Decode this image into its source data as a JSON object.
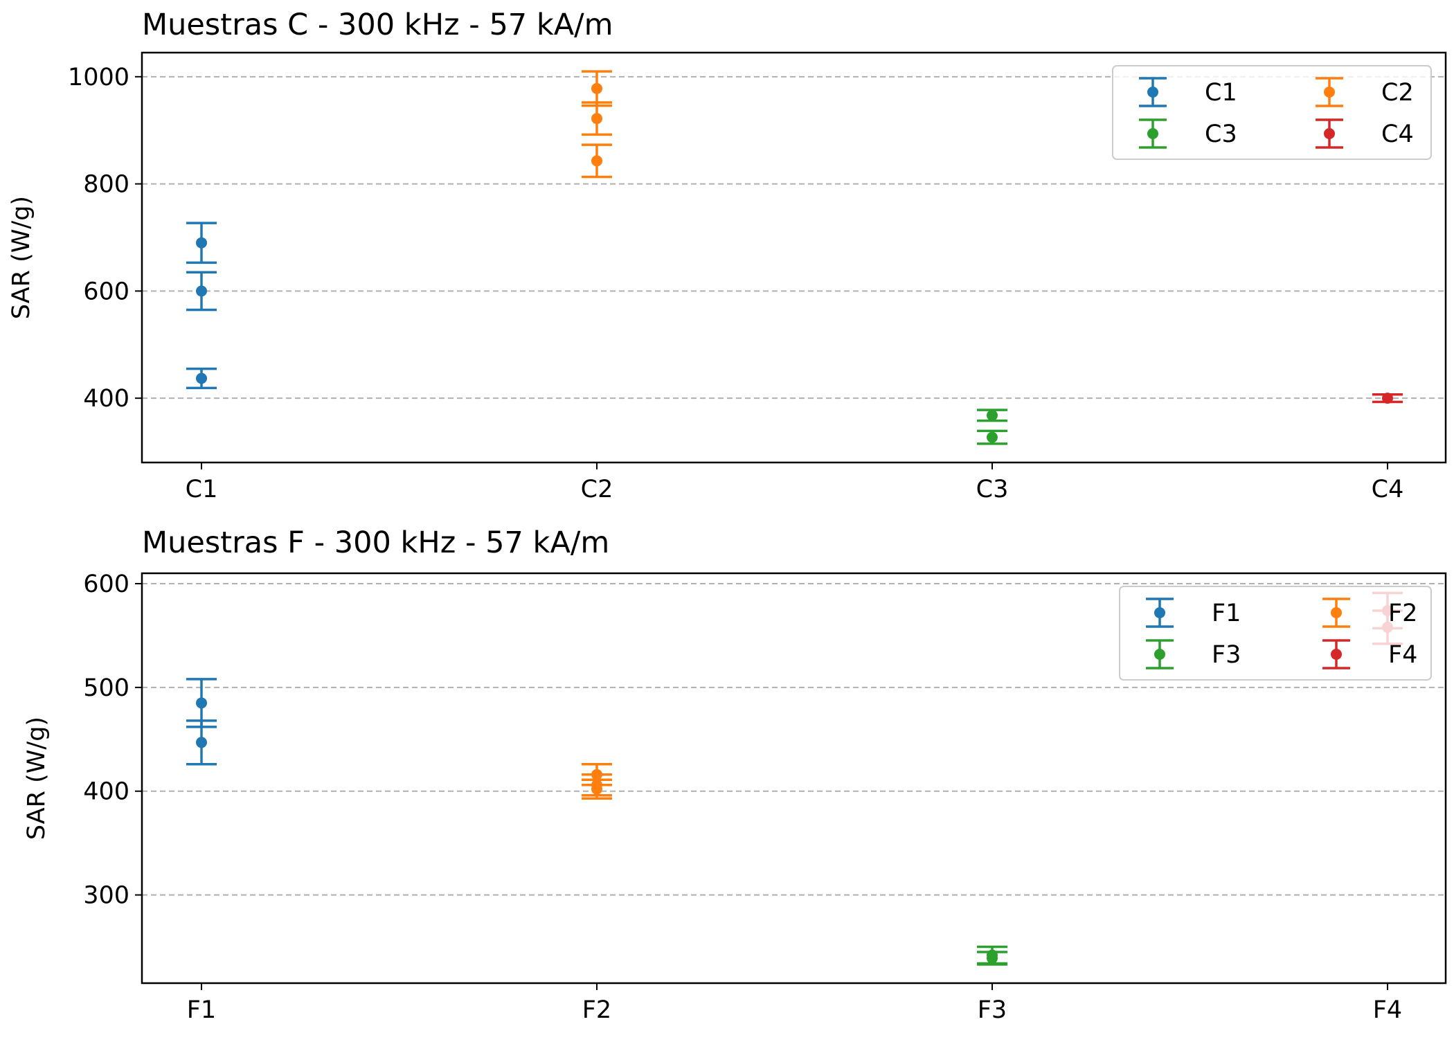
{
  "colors": {
    "C1": "#1f77b4",
    "C2": "#ff7f0e",
    "C3": "#2ca02c",
    "C4": "#d62728",
    "F1": "#1f77b4",
    "F2": "#ff7f0e",
    "F3": "#2ca02c",
    "F4": "#d62728",
    "grid": "#b0b0b0"
  },
  "chart_data": [
    {
      "type": "scatter",
      "title": "Muestras C - 300 kHz - 57 kA/m",
      "xlabel": "",
      "ylabel": "SAR (W/g)",
      "categories": [
        "C1",
        "C2",
        "C3",
        "C4"
      ],
      "ylim": [
        280,
        1045
      ],
      "yticks": [
        400,
        600,
        800,
        1000
      ],
      "grid": "y-dashed",
      "legend": {
        "position": "top-right",
        "columns": 2,
        "entries": [
          "C1",
          "C2",
          "C3",
          "C4"
        ]
      },
      "series": [
        {
          "name": "C1",
          "points": [
            {
              "y": 690,
              "err": 37
            },
            {
              "y": 600,
              "err": 35
            },
            {
              "y": 437,
              "err": 18
            }
          ]
        },
        {
          "name": "C2",
          "points": [
            {
              "y": 978,
              "err": 32
            },
            {
              "y": 922,
              "err": 30
            },
            {
              "y": 843,
              "err": 30
            }
          ]
        },
        {
          "name": "C3",
          "points": [
            {
              "y": 368,
              "err": 10
            },
            {
              "y": 327,
              "err": 12
            }
          ]
        },
        {
          "name": "C4",
          "points": [
            {
              "y": 400,
              "err": 7
            }
          ]
        }
      ]
    },
    {
      "type": "scatter",
      "title": "Muestras F - 300 kHz - 57 kA/m",
      "xlabel": "",
      "ylabel": "SAR (W/g)",
      "categories": [
        "F1",
        "F2",
        "F3",
        "F4"
      ],
      "ylim": [
        215,
        610
      ],
      "yticks": [
        300,
        400,
        500,
        600
      ],
      "grid": "y-dashed",
      "legend": {
        "position": "top-right",
        "columns": 2,
        "entries": [
          "F1",
          "F2",
          "F3",
          "F4"
        ]
      },
      "series": [
        {
          "name": "F1",
          "points": [
            {
              "y": 485,
              "err": 23
            },
            {
              "y": 447,
              "err": 21
            }
          ]
        },
        {
          "name": "F2",
          "points": [
            {
              "y": 416,
              "err": 10
            },
            {
              "y": 406,
              "err": 10
            },
            {
              "y": 402,
              "err": 9
            }
          ]
        },
        {
          "name": "F3",
          "points": [
            {
              "y": 242,
              "err": 8
            },
            {
              "y": 239,
              "err": 6
            }
          ]
        },
        {
          "name": "F4",
          "points": [
            {
              "y": 574,
              "err": 17
            },
            {
              "y": 558,
              "err": 16
            }
          ]
        }
      ]
    }
  ]
}
